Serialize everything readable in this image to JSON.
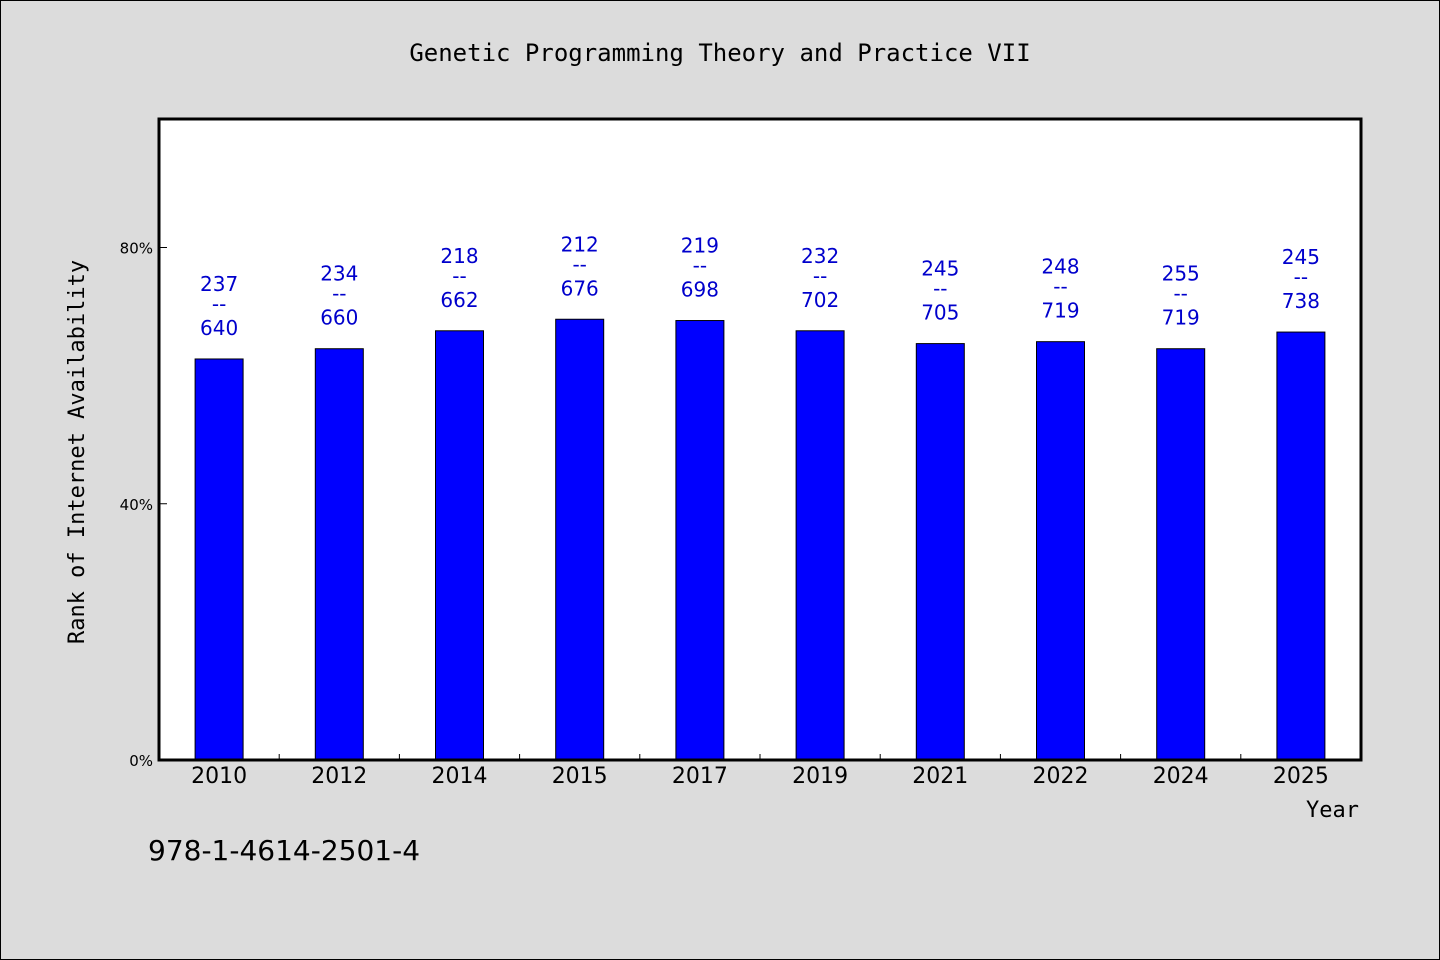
{
  "chart_data": {
    "type": "bar",
    "title": "Genetic Programming Theory and Practice VII",
    "xlabel": "Year",
    "ylabel": "Rank of Internet Availability",
    "categories": [
      "2010",
      "2012",
      "2014",
      "2015",
      "2017",
      "2019",
      "2021",
      "2022",
      "2024",
      "2025"
    ],
    "values": [
      62.6,
      64.2,
      67.0,
      68.8,
      68.6,
      67.0,
      65.0,
      65.3,
      64.2,
      66.8
    ],
    "data_labels": [
      {
        "top": "237",
        "sep": "--",
        "bottom": "640"
      },
      {
        "top": "234",
        "sep": "--",
        "bottom": "660"
      },
      {
        "top": "218",
        "sep": "--",
        "bottom": "662"
      },
      {
        "top": "212",
        "sep": "--",
        "bottom": "676"
      },
      {
        "top": "219",
        "sep": "--",
        "bottom": "698"
      },
      {
        "top": "232",
        "sep": "--",
        "bottom": "702"
      },
      {
        "top": "245",
        "sep": "--",
        "bottom": "705"
      },
      {
        "top": "248",
        "sep": "--",
        "bottom": "719"
      },
      {
        "top": "255",
        "sep": "--",
        "bottom": "719"
      },
      {
        "top": "245",
        "sep": "--",
        "bottom": "738"
      }
    ],
    "yticks": [
      {
        "value": 0,
        "label": "0%"
      },
      {
        "value": 40,
        "label": "40%"
      },
      {
        "value": 80,
        "label": "80%"
      }
    ],
    "ylim": [
      0,
      100
    ],
    "grid": false,
    "bar_color": "#0000ff",
    "label_color": "#0000cc"
  },
  "footnote": "978-1-4614-2501-4"
}
